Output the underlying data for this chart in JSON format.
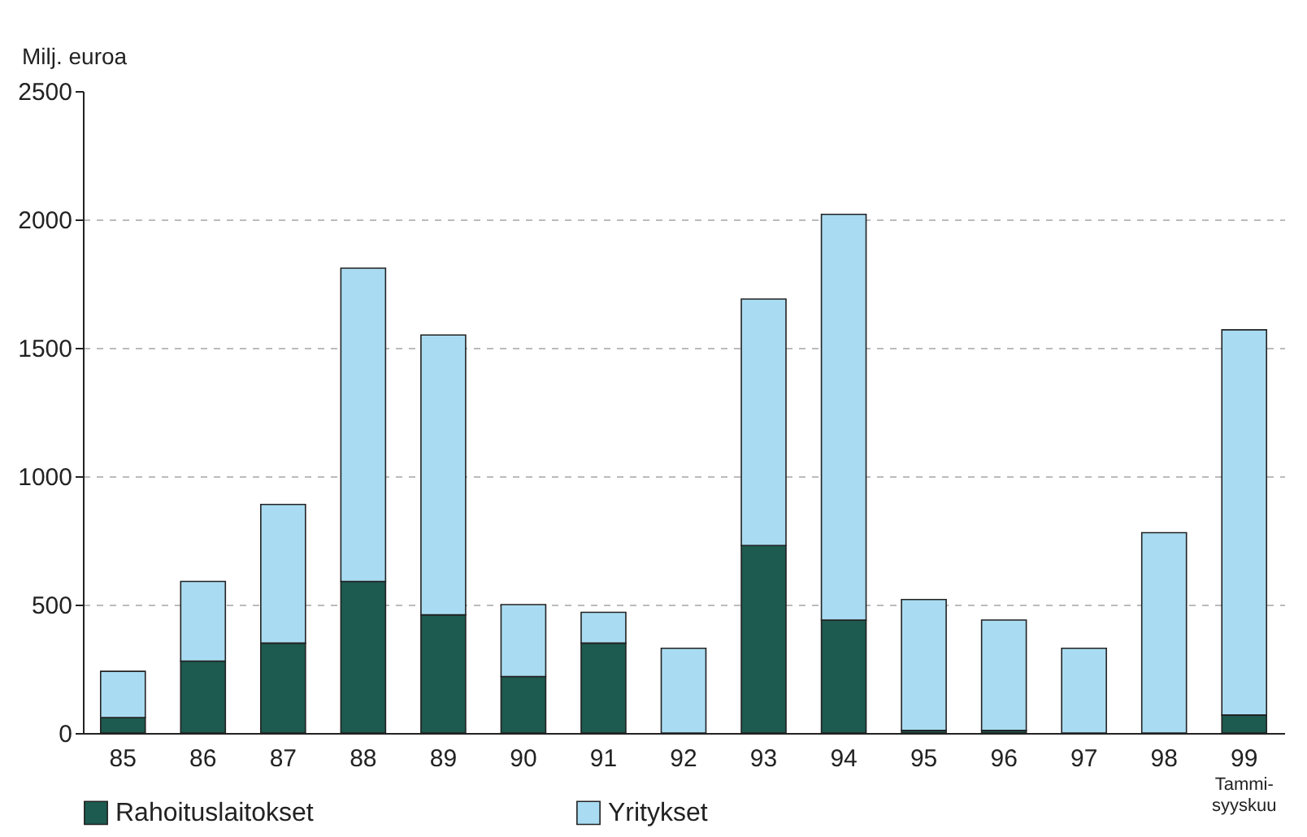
{
  "chart_data": {
    "type": "bar",
    "stacked": true,
    "ylabel": "Milj. euroa",
    "categories": [
      "85",
      "86",
      "87",
      "88",
      "89",
      "90",
      "91",
      "92",
      "93",
      "94",
      "95",
      "96",
      "97",
      "98",
      "99"
    ],
    "series": [
      {
        "name": "Rahoituslaitokset",
        "color": "#1d5a4f",
        "values": [
          60,
          280,
          350,
          590,
          460,
          220,
          350,
          0,
          730,
          440,
          10,
          10,
          0,
          0,
          70
        ]
      },
      {
        "name": "Yritykset",
        "color": "#a9dcf2",
        "values": [
          180,
          310,
          540,
          1220,
          1090,
          280,
          120,
          330,
          960,
          1580,
          510,
          430,
          330,
          780,
          1500
        ]
      }
    ],
    "ylim": [
      0,
      2500
    ],
    "yticks": [
      0,
      500,
      1000,
      1500,
      2000,
      2500
    ],
    "grid": "y",
    "legend": "bottom",
    "annotations": [
      "Tammi-\nsyyskuu"
    ]
  }
}
